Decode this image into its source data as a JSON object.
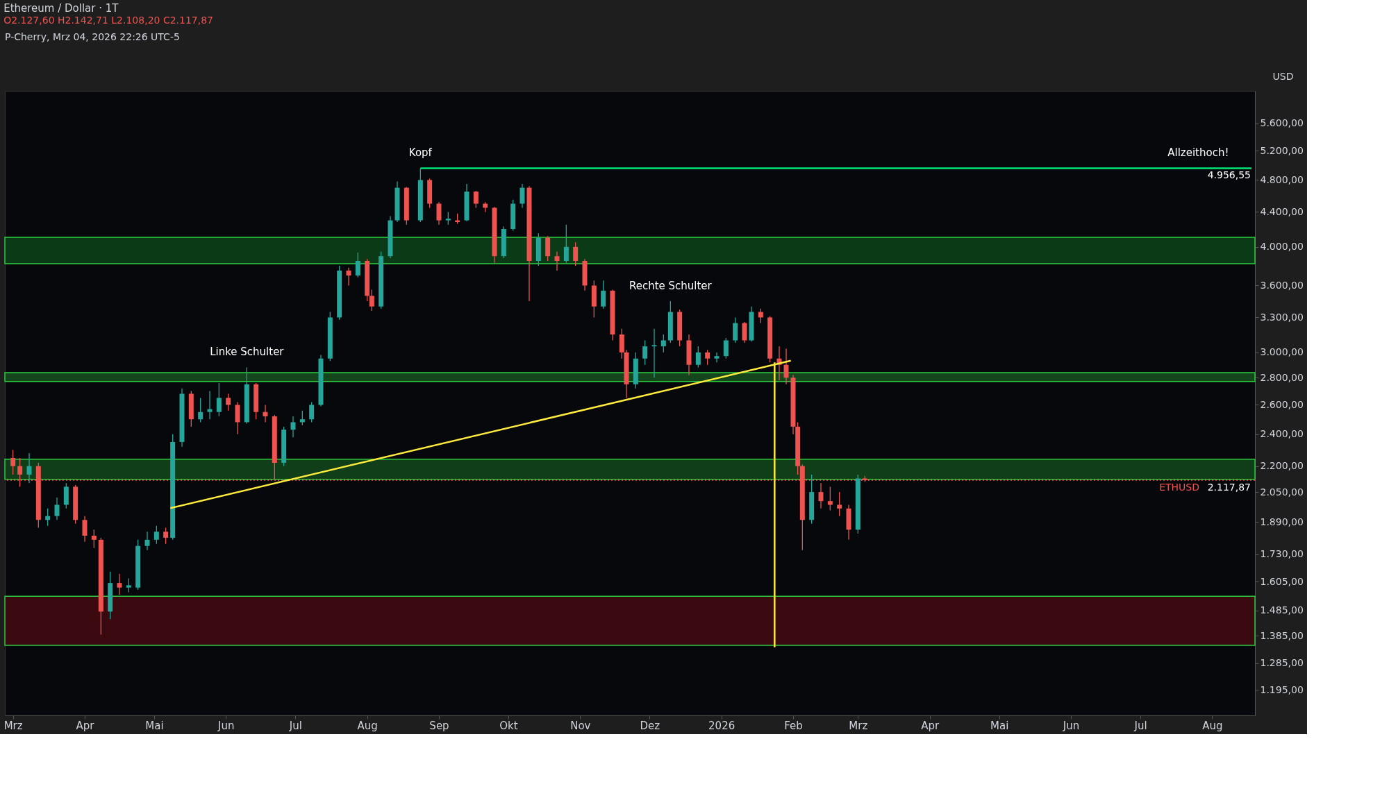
{
  "chart_data": {
    "type": "candlestick",
    "title": "Ethereum / Dollar · 1T",
    "subtitle": "O2.127,60 H2.142,71 L2.108,20 C2.117,87",
    "ylabel": "USD",
    "x": [
      "2025-03-01",
      "2025-03-04",
      "2025-03-08",
      "2025-03-12",
      "2025-03-16",
      "2025-03-20",
      "2025-03-24",
      "2025-03-28",
      "2025-04-01",
      "2025-04-05",
      "2025-04-08",
      "2025-04-12",
      "2025-04-16",
      "2025-04-20",
      "2025-04-24",
      "2025-04-28",
      "2025-05-02",
      "2025-05-06",
      "2025-05-09",
      "2025-05-13",
      "2025-05-17",
      "2025-05-21",
      "2025-05-25",
      "2025-05-29",
      "2025-06-02",
      "2025-06-06",
      "2025-06-10",
      "2025-06-14",
      "2025-06-18",
      "2025-06-22",
      "2025-06-26",
      "2025-06-30",
      "2025-07-04",
      "2025-07-08",
      "2025-07-12",
      "2025-07-16",
      "2025-07-20",
      "2025-07-24",
      "2025-07-28",
      "2025-08-01",
      "2025-08-03",
      "2025-08-07",
      "2025-08-11",
      "2025-08-14",
      "2025-08-18",
      "2025-08-24",
      "2025-08-28",
      "2025-09-01",
      "2025-09-05",
      "2025-09-09",
      "2025-09-13",
      "2025-09-17",
      "2025-09-21",
      "2025-09-25",
      "2025-09-29",
      "2025-10-03",
      "2025-10-07",
      "2025-10-10",
      "2025-10-14",
      "2025-10-18",
      "2025-10-22",
      "2025-10-26",
      "2025-10-30",
      "2025-11-03",
      "2025-11-07",
      "2025-11-11",
      "2025-11-15",
      "2025-11-19",
      "2025-11-21",
      "2025-11-25",
      "2025-11-29",
      "2025-12-03",
      "2025-12-07",
      "2025-12-10",
      "2025-12-14",
      "2025-12-18",
      "2025-12-22",
      "2025-12-26",
      "2025-12-30",
      "2026-01-03",
      "2026-01-07",
      "2026-01-11",
      "2026-01-14",
      "2026-01-18",
      "2026-01-22",
      "2026-01-26",
      "2026-01-29",
      "2026-02-01",
      "2026-02-03",
      "2026-02-05",
      "2026-02-09",
      "2026-02-13",
      "2026-02-17",
      "2026-02-21",
      "2026-02-25",
      "2026-03-01",
      "2026-03-04"
    ],
    "ohlc": [
      [
        2250,
        2300,
        2150,
        2200
      ],
      [
        2200,
        2250,
        2080,
        2150
      ],
      [
        2150,
        2280,
        2100,
        2200
      ],
      [
        2200,
        2220,
        1860,
        1900
      ],
      [
        1900,
        1960,
        1870,
        1920
      ],
      [
        1920,
        2020,
        1900,
        1980
      ],
      [
        1980,
        2100,
        1960,
        2080
      ],
      [
        2080,
        2090,
        1880,
        1900
      ],
      [
        1900,
        1920,
        1790,
        1820
      ],
      [
        1820,
        1850,
        1760,
        1800
      ],
      [
        1800,
        1810,
        1390,
        1480
      ],
      [
        1480,
        1650,
        1450,
        1600
      ],
      [
        1600,
        1640,
        1550,
        1580
      ],
      [
        1580,
        1620,
        1560,
        1590
      ],
      [
        1580,
        1800,
        1570,
        1770
      ],
      [
        1770,
        1840,
        1750,
        1800
      ],
      [
        1800,
        1870,
        1780,
        1840
      ],
      [
        1840,
        1860,
        1780,
        1810
      ],
      [
        1810,
        2400,
        1800,
        2350
      ],
      [
        2350,
        2720,
        2320,
        2680
      ],
      [
        2680,
        2700,
        2450,
        2500
      ],
      [
        2500,
        2650,
        2480,
        2550
      ],
      [
        2550,
        2700,
        2500,
        2570
      ],
      [
        2550,
        2760,
        2520,
        2650
      ],
      [
        2650,
        2680,
        2560,
        2600
      ],
      [
        2600,
        2620,
        2400,
        2480
      ],
      [
        2480,
        2880,
        2470,
        2750
      ],
      [
        2750,
        2760,
        2500,
        2550
      ],
      [
        2550,
        2600,
        2480,
        2520
      ],
      [
        2520,
        2530,
        2120,
        2220
      ],
      [
        2220,
        2450,
        2200,
        2430
      ],
      [
        2430,
        2520,
        2380,
        2480
      ],
      [
        2480,
        2560,
        2460,
        2500
      ],
      [
        2500,
        2620,
        2480,
        2600
      ],
      [
        2600,
        2980,
        2590,
        2950
      ],
      [
        2950,
        3350,
        2930,
        3300
      ],
      [
        3300,
        3800,
        3280,
        3750
      ],
      [
        3750,
        3780,
        3600,
        3700
      ],
      [
        3700,
        3940,
        3680,
        3850
      ],
      [
        3850,
        3870,
        3450,
        3500
      ],
      [
        3500,
        3560,
        3360,
        3400
      ],
      [
        3400,
        3950,
        3380,
        3900
      ],
      [
        3900,
        4350,
        3880,
        4300
      ],
      [
        4300,
        4780,
        4280,
        4700
      ],
      [
        4700,
        4710,
        4250,
        4300
      ],
      [
        4300,
        4956.55,
        4280,
        4800
      ],
      [
        4800,
        4820,
        4450,
        4500
      ],
      [
        4500,
        4520,
        4250,
        4300
      ],
      [
        4300,
        4400,
        4250,
        4320
      ],
      [
        4300,
        4380,
        4260,
        4280
      ],
      [
        4300,
        4750,
        4290,
        4650
      ],
      [
        4650,
        4660,
        4450,
        4500
      ],
      [
        4500,
        4520,
        4400,
        4450
      ],
      [
        4450,
        4460,
        3830,
        3900
      ],
      [
        3900,
        4230,
        3880,
        4200
      ],
      [
        4200,
        4550,
        4180,
        4500
      ],
      [
        4500,
        4750,
        4450,
        4700
      ],
      [
        4700,
        4720,
        3450,
        3850
      ],
      [
        3850,
        4150,
        3800,
        4100
      ],
      [
        4100,
        4120,
        3850,
        3900
      ],
      [
        3900,
        3950,
        3750,
        3850
      ],
      [
        3850,
        4250,
        3830,
        4000
      ],
      [
        4000,
        4050,
        3800,
        3850
      ],
      [
        3850,
        3870,
        3550,
        3600
      ],
      [
        3600,
        3650,
        3300,
        3400
      ],
      [
        3400,
        3650,
        3380,
        3550
      ],
      [
        3550,
        3560,
        3100,
        3150
      ],
      [
        3150,
        3200,
        2950,
        3000
      ],
      [
        3000,
        3020,
        2650,
        2750
      ],
      [
        2750,
        3000,
        2720,
        2950
      ],
      [
        2950,
        3100,
        2900,
        3050
      ],
      [
        3050,
        3200,
        2800,
        3060
      ],
      [
        3050,
        3150,
        3000,
        3100
      ],
      [
        3100,
        3450,
        3080,
        3350
      ],
      [
        3350,
        3370,
        3050,
        3100
      ],
      [
        3100,
        3150,
        2820,
        2900
      ],
      [
        2900,
        3050,
        2880,
        3000
      ],
      [
        3000,
        3020,
        2900,
        2950
      ],
      [
        2950,
        3000,
        2920,
        2970
      ],
      [
        2970,
        3120,
        2950,
        3100
      ],
      [
        3100,
        3300,
        3080,
        3250
      ],
      [
        3250,
        3260,
        3080,
        3100
      ],
      [
        3100,
        3400,
        3090,
        3350
      ],
      [
        3350,
        3380,
        3250,
        3300
      ],
      [
        3300,
        3310,
        2920,
        2950
      ],
      [
        2950,
        3050,
        2780,
        2900
      ],
      [
        2900,
        3030,
        2750,
        2800
      ],
      [
        2800,
        2820,
        2400,
        2450
      ],
      [
        2450,
        2480,
        2150,
        2200
      ],
      [
        2200,
        2210,
        1750,
        1900
      ],
      [
        1900,
        2150,
        1880,
        2050
      ],
      [
        2050,
        2100,
        1960,
        2000
      ],
      [
        2000,
        2080,
        1950,
        1980
      ],
      [
        1980,
        2050,
        1920,
        1960
      ],
      [
        1960,
        1980,
        1800,
        1850
      ],
      [
        1850,
        2150,
        1830,
        2127.6
      ],
      [
        2127.6,
        2142.71,
        2108.2,
        2117.87
      ]
    ],
    "log": true,
    "ylim": [
      1115,
      6120
    ],
    "yticks": [
      {
        "value": 1195,
        "label": "1.195,00"
      },
      {
        "value": 1285,
        "label": "1.285,00"
      },
      {
        "value": 1385,
        "label": "1.385,00"
      },
      {
        "value": 1485,
        "label": "1.485,00"
      },
      {
        "value": 1605,
        "label": "1.605,00"
      },
      {
        "value": 1730,
        "label": "1.730,00"
      },
      {
        "value": 1890,
        "label": "1.890,00"
      },
      {
        "value": 2050,
        "label": "2.050,00"
      },
      {
        "value": 2200,
        "label": "2.200,00"
      },
      {
        "value": 2400,
        "label": "2.400,00"
      },
      {
        "value": 2600,
        "label": "2.600,00"
      },
      {
        "value": 2800,
        "label": "2.800,00"
      },
      {
        "value": 3000,
        "label": "3.000,00"
      },
      {
        "value": 3300,
        "label": "3.300,00"
      },
      {
        "value": 3600,
        "label": "3.600,00"
      },
      {
        "value": 4000,
        "label": "4.000,00"
      },
      {
        "value": 4400,
        "label": "4.400,00"
      },
      {
        "value": 4800,
        "label": "4.800,00"
      },
      {
        "value": 5200,
        "label": "5.200,00"
      },
      {
        "value": 5600,
        "label": "5.600,00"
      }
    ],
    "xlim": [
      "2025-02-27",
      "2026-08-18"
    ],
    "xticks": [
      {
        "value": "2025-03-01",
        "label": "Mrz"
      },
      {
        "value": "2025-04-01",
        "label": "Apr"
      },
      {
        "value": "2025-05-01",
        "label": "Mai"
      },
      {
        "value": "2025-06-01",
        "label": "Jun"
      },
      {
        "value": "2025-07-01",
        "label": "Jul"
      },
      {
        "value": "2025-08-01",
        "label": "Aug"
      },
      {
        "value": "2025-09-01",
        "label": "Sep"
      },
      {
        "value": "2025-10-01",
        "label": "Okt"
      },
      {
        "value": "2025-11-01",
        "label": "Nov"
      },
      {
        "value": "2025-12-01",
        "label": "Dez"
      },
      {
        "value": "2026-01-01",
        "label": "2026"
      },
      {
        "value": "2026-02-01",
        "label": "Feb"
      },
      {
        "value": "2026-03-01",
        "label": "Mrz"
      },
      {
        "value": "2026-04-01",
        "label": "Apr"
      },
      {
        "value": "2026-05-01",
        "label": "Mai"
      },
      {
        "value": "2026-06-01",
        "label": "Jun"
      },
      {
        "value": "2026-07-01",
        "label": "Jul"
      },
      {
        "value": "2026-08-01",
        "label": "Aug"
      }
    ],
    "series": [
      {
        "type": "line",
        "color": "#ffeb3b",
        "x": [
          "2025-05-08",
          "2026-01-31"
        ],
        "values": [
          1962,
          2933
        ]
      },
      {
        "type": "line",
        "color": "#ffeb3b",
        "x": [
          "2026-01-24",
          "2026-01-24"
        ],
        "values": [
          2920,
          1343
        ]
      },
      {
        "type": "line",
        "color": "#00e676",
        "x": [
          "2025-08-24",
          "2026-08-18"
        ],
        "values": [
          4956.55,
          4956.55
        ]
      }
    ],
    "bands": [
      {
        "axis": "y",
        "from": 3820,
        "to": 4105,
        "color": "#0b3a16"
      },
      {
        "axis": "y",
        "from": 2771,
        "to": 2839,
        "color": "#14451d"
      },
      {
        "axis": "y",
        "from": 2122,
        "to": 2242,
        "color": "#103e19"
      },
      {
        "axis": "y",
        "from": 1350,
        "to": 1543,
        "color": "#3a0a10"
      }
    ],
    "ref_lines": [
      {
        "axis": "y",
        "value": 2117.87,
        "label": "ETHUSD",
        "color": "#ef5350",
        "line_style": "dotted"
      }
    ],
    "annotations": [
      "P-Cherry, Mrz 04, 2026 22:26 UTC-5",
      {
        "text": "Kopf",
        "x": "2025-08-24",
        "y": 4956.55
      },
      {
        "text": "Linke Schulter",
        "x": "2025-06-10",
        "y": 2880
      },
      {
        "text": "Rechte Schulter",
        "x": "2025-12-10",
        "y": 3450
      },
      {
        "text": "Allzeithoch!",
        "x": "2026-07-26",
        "y": 4956.55
      },
      {
        "text": "4.956,55",
        "y": 4956.55
      },
      {
        "text": "2.117,87",
        "y": 2117.87
      }
    ],
    "grid": false
  }
}
